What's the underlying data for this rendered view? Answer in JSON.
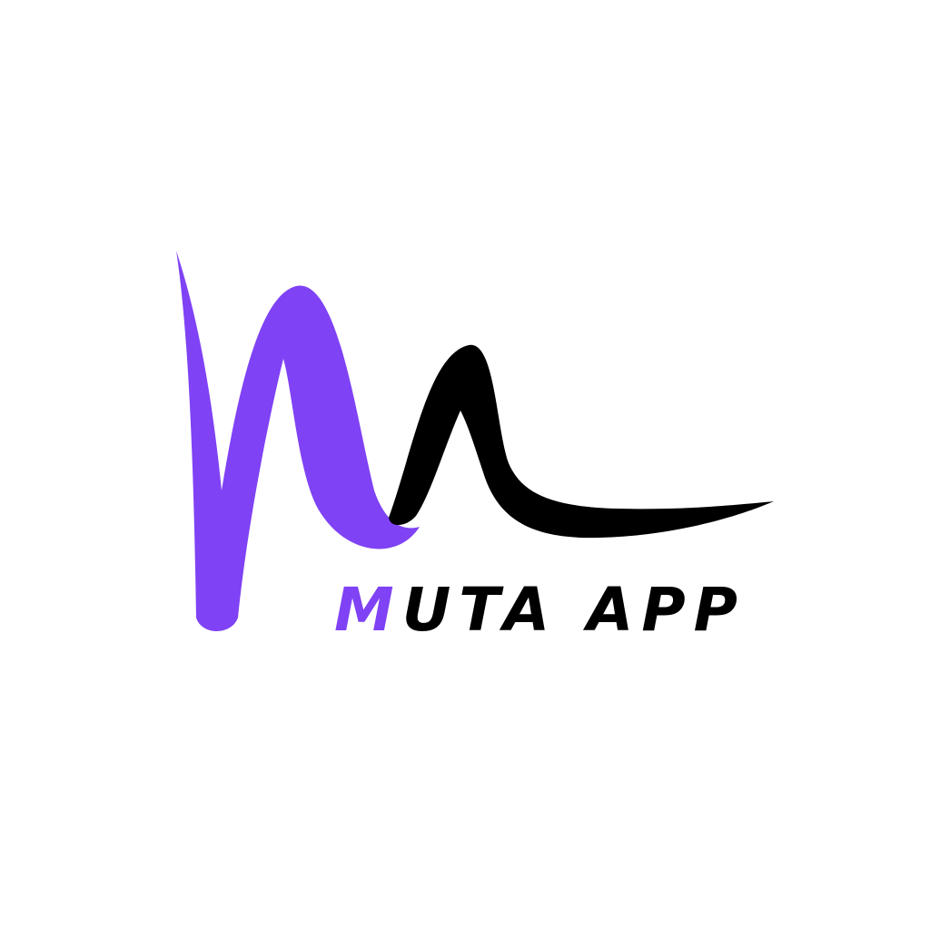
{
  "brand": {
    "name_first_letter": "M",
    "name_rest": "UTA APP",
    "colors": {
      "accent": "#7f42f4",
      "dark": "#000000",
      "background": "#ffffff"
    }
  },
  "logo": {
    "icon": "wave-m-logo-icon"
  }
}
